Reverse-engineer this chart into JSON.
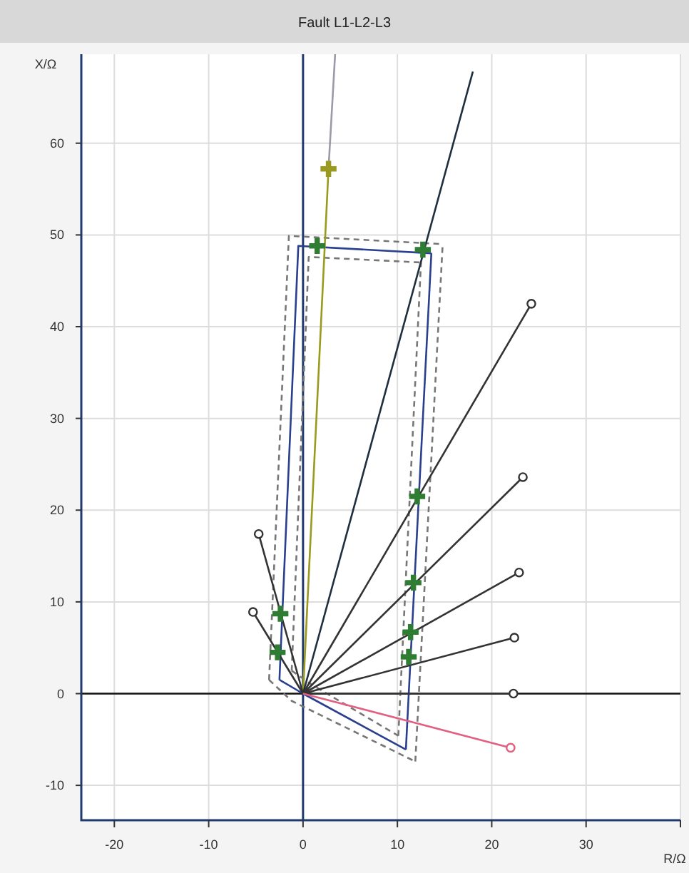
{
  "chart_data": {
    "type": "line",
    "title": "Fault L1-L2-L3",
    "xlabel": "R/Ω",
    "ylabel": "X/Ω",
    "xlim": [
      -23.5,
      40
    ],
    "xticks": [
      -20,
      -10,
      0,
      10,
      20,
      30,
      {
        "value": 40,
        "label": null
      }
    ],
    "ylim": [
      -13.8,
      69.7
    ],
    "yticks": [
      -10,
      0,
      10,
      20,
      30,
      40,
      50,
      60
    ],
    "grid": true,
    "ref_lines": [
      {
        "axis": "x",
        "value": 0,
        "color": "#1f3a6e"
      },
      {
        "axis": "y",
        "value": 0,
        "color": "#111111"
      }
    ],
    "series": [
      {
        "color": "#2b3f8f",
        "x": [
          -2.5,
          0,
          10.9
        ],
        "values": [
          1.5,
          0,
          -6.1
        ]
      },
      {
        "color": "#2b3f8f",
        "x": [
          -2.5,
          -0.5,
          13.6
        ],
        "values": [
          1.5,
          48.8,
          48
        ]
      },
      {
        "color": "#2b3f8f",
        "x": [
          10.9,
          13.6
        ],
        "values": [
          -6.1,
          48
        ]
      },
      {
        "color": "#777777",
        "line_style": "dashed",
        "x": [
          -3.6,
          -1.2,
          11.9
        ],
        "values": [
          1.5,
          -0.8,
          -7.4
        ]
      },
      {
        "color": "#777777",
        "line_style": "dashed",
        "x": [
          -3.6,
          -1.5,
          14.8
        ],
        "values": [
          1.5,
          49.9,
          49
        ]
      },
      {
        "color": "#777777",
        "line_style": "dashed",
        "x": [
          11.9,
          14.8
        ],
        "values": [
          -7.4,
          49
        ]
      },
      {
        "color": "#777777",
        "line_style": "dashed",
        "x": [
          -1.2,
          0.9,
          10.1
        ],
        "values": [
          2.5,
          1,
          -4.6
        ]
      },
      {
        "color": "#777777",
        "line_style": "dashed",
        "x": [
          -1.2,
          0.6,
          12.5
        ],
        "values": [
          2.5,
          47.6,
          47
        ]
      },
      {
        "color": "#777777",
        "line_style": "dashed",
        "x": [
          10.1,
          12.5
        ],
        "values": [
          -4.6,
          47
        ]
      },
      {
        "color": "#9a9a1e",
        "x": [
          0,
          2.7
        ],
        "values": [
          0,
          57.2
        ]
      },
      {
        "color": "#9a9aa8",
        "x": [
          2.7,
          3.4
        ],
        "values": [
          57.2,
          69.7
        ]
      },
      {
        "color": "#1f2f3f",
        "x": [
          0,
          18
        ],
        "values": [
          0,
          67.8
        ]
      },
      {
        "type": "line",
        "color": "#333333",
        "x": [
          0,
          24.2
        ],
        "values": [
          0,
          42.5
        ]
      },
      {
        "type": "line",
        "color": "#333333",
        "x": [
          0,
          23.3
        ],
        "values": [
          0,
          23.6
        ]
      },
      {
        "type": "line",
        "color": "#333333",
        "x": [
          0,
          22.9
        ],
        "values": [
          0,
          13.2
        ]
      },
      {
        "type": "line",
        "color": "#333333",
        "x": [
          0,
          22.4
        ],
        "values": [
          0,
          6.1
        ]
      },
      {
        "type": "line",
        "color": "#333333",
        "x": [
          0,
          22.3
        ],
        "values": [
          0,
          0
        ]
      },
      {
        "type": "line",
        "color": "#333333",
        "x": [
          0,
          -4.7
        ],
        "values": [
          0,
          17.4
        ]
      },
      {
        "type": "line",
        "color": "#333333",
        "x": [
          0,
          -5.3
        ],
        "values": [
          0,
          8.9
        ]
      },
      {
        "type": "line",
        "color": "#e06080",
        "x": [
          0,
          22
        ],
        "values": [
          0,
          -5.9
        ]
      },
      {
        "type": "scatter",
        "color": "#333333",
        "marker": "circle",
        "x": [
          24.2,
          23.3,
          22.9,
          22.4,
          22.3,
          -4.7,
          -5.3
        ],
        "values": [
          42.5,
          23.6,
          13.2,
          6.1,
          0,
          17.4,
          8.9
        ]
      },
      {
        "type": "scatter",
        "color": "#e06080",
        "marker": "circle",
        "x": [
          22
        ],
        "values": [
          -5.9
        ]
      },
      {
        "type": "scatter",
        "color": "#2e7d32",
        "marker": "cross",
        "x": [
          12.1,
          11.7,
          11.4,
          11.2,
          -2.4,
          -2.7,
          1.5,
          12.7
        ],
        "values": [
          21.5,
          12.1,
          6.7,
          4,
          8.7,
          4.5,
          48.8,
          48.4
        ]
      },
      {
        "type": "scatter",
        "color": "#9a9a1e",
        "marker": "cross",
        "x": [
          2.7
        ],
        "values": [
          57.2
        ]
      }
    ]
  }
}
